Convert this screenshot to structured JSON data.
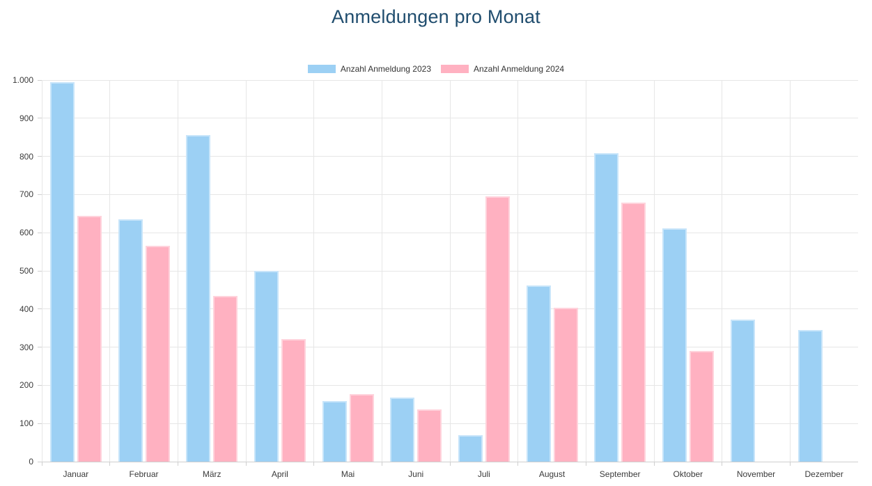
{
  "title": "Anmeldungen pro Monat",
  "colors": {
    "title_text": "#204d6e",
    "axis_text": "#3a3a3a",
    "grid": "#e6e6e6",
    "axis_line": "#cfcfcf",
    "series_2023_fill": "#9cd0f4",
    "series_2023_border": "#c8e5fa",
    "series_2024_fill": "#ffb1c1",
    "series_2024_border": "#ffd3dc"
  },
  "legend": {
    "items": [
      {
        "label": "Anzahl Anmeldung 2023",
        "color": "#9cd0f4"
      },
      {
        "label": "Anzahl Anmeldung 2024",
        "color": "#ffb1c1"
      }
    ]
  },
  "chart_data": {
    "type": "bar",
    "title": "Anmeldungen pro Monat",
    "xlabel": "",
    "ylabel": "",
    "categories": [
      "Januar",
      "Februar",
      "März",
      "April",
      "Mai",
      "Juni",
      "Juli",
      "August",
      "September",
      "Oktober",
      "November",
      "Dezember"
    ],
    "series": [
      {
        "name": "Anzahl Anmeldung 2023",
        "fill": "#9cd0f4",
        "border": "#c8e5fa",
        "values": [
          995,
          635,
          855,
          500,
          158,
          167,
          70,
          462,
          808,
          611,
          372,
          344
        ]
      },
      {
        "name": "Anzahl Anmeldung 2024",
        "fill": "#ffb1c1",
        "border": "#ffd3dc",
        "values": [
          645,
          565,
          435,
          322,
          177,
          137,
          696,
          403,
          678,
          290,
          null,
          null
        ]
      }
    ],
    "ylim": [
      0,
      1000
    ],
    "ytick_step": 100,
    "ytick_labels_top_to_bottom": [
      "1.000",
      "900",
      "800",
      "700",
      "600",
      "500",
      "400",
      "300",
      "200",
      "100",
      "0"
    ],
    "grid": true,
    "legend_position": "top"
  }
}
